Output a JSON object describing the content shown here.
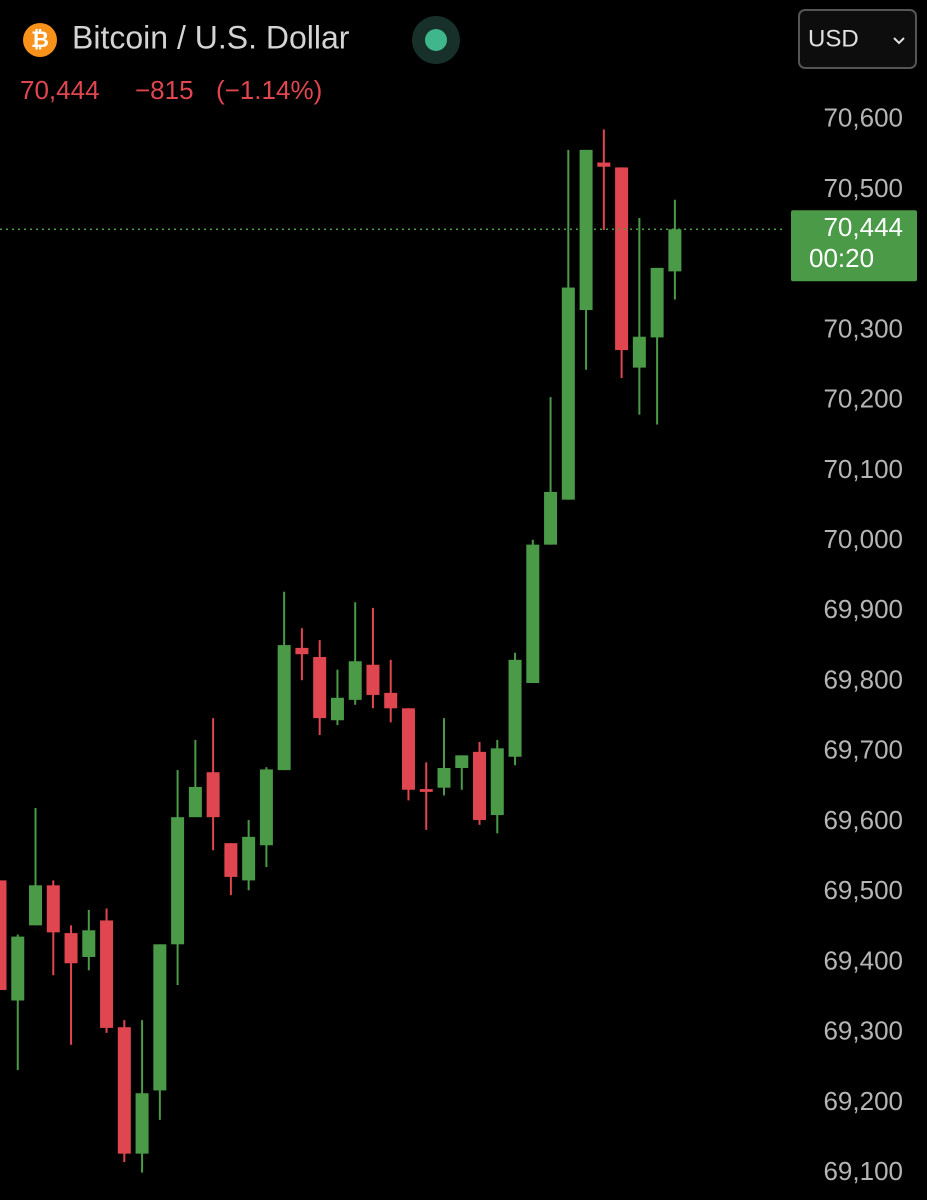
{
  "header": {
    "icon": "₿",
    "title": "Bitcoin / U.S. Dollar",
    "currency": "USD",
    "price": "70,444",
    "change": "−815",
    "change_pct": "(−1.14%)"
  },
  "chart_data": {
    "type": "candlestick",
    "open": [
      69517,
      69346,
      69453,
      69510,
      69442,
      69408,
      69460,
      69308,
      69128,
      69218,
      69426,
      69607,
      69671,
      69570,
      69517,
      69567,
      69674,
      69848,
      69835,
      69745,
      69774,
      69824,
      69784,
      69762,
      69647,
      69649,
      69677,
      69700,
      69610,
      69693,
      69798,
      69995,
      70059,
      70329,
      70539,
      70532,
      70247,
      70290,
      70384
    ],
    "high": [
      69517,
      69440,
      69620,
      69517,
      69453,
      69475,
      69477,
      69318,
      69318,
      69426,
      69674,
      69717,
      69748,
      69570,
      69603,
      69678,
      69928,
      69876,
      69859,
      69817,
      69913,
      69905,
      69831,
      69762,
      69685,
      69748,
      69695,
      69714,
      69717,
      69841,
      70002,
      70205,
      70557,
      70557,
      70586,
      70532,
      70460,
      70389,
      70486
    ],
    "low": [
      69361,
      69247,
      69453,
      69382,
      69283,
      69389,
      69300,
      69116,
      69101,
      69176,
      69368,
      69607,
      69560,
      69496,
      69503,
      69536,
      69674,
      69802,
      69724,
      69738,
      69767,
      69762,
      69742,
      69631,
      69589,
      69638,
      69646,
      69596,
      69584,
      69681,
      69798,
      69995,
      70059,
      70244,
      70443,
      70232,
      70180,
      70166,
      70344
    ],
    "close": [
      69361,
      69437,
      69510,
      69443,
      69399,
      69446,
      69307,
      69128,
      69214,
      69426,
      69607,
      69650,
      69607,
      69522,
      69579,
      69675,
      69852,
      69839,
      69748,
      69777,
      69829,
      69781,
      69762,
      69646,
      69643,
      69677,
      69695,
      69603,
      69705,
      69831,
      69995,
      70070,
      70361,
      70557,
      70533,
      70272,
      70291,
      70389,
      70444
    ],
    "up_color": "#4a9a48",
    "down_color": "#e0464f",
    "ylim": [
      69062,
      70628
    ],
    "yticks": [
      {
        "value": 69100,
        "label": "69,100"
      },
      {
        "value": 69200,
        "label": "69,200"
      },
      {
        "value": 69300,
        "label": "69,300"
      },
      {
        "value": 69400,
        "label": "69,400"
      },
      {
        "value": 69500,
        "label": "69,500"
      },
      {
        "value": 69600,
        "label": "69,600"
      },
      {
        "value": 69700,
        "label": "69,700"
      },
      {
        "value": 69800,
        "label": "69,800"
      },
      {
        "value": 69900,
        "label": "69,900"
      },
      {
        "value": 70000,
        "label": "70,000"
      },
      {
        "value": 70100,
        "label": "70,100"
      },
      {
        "value": 70200,
        "label": "70,200"
      },
      {
        "value": 70300,
        "label": "70,300"
      },
      {
        "value": 70400,
        "label": "70,400"
      },
      {
        "value": 70500,
        "label": "70,500"
      },
      {
        "value": 70600,
        "label": "70,600"
      }
    ],
    "last_price": {
      "value": 70444,
      "label": "70,444"
    },
    "countdown": "00:20"
  }
}
